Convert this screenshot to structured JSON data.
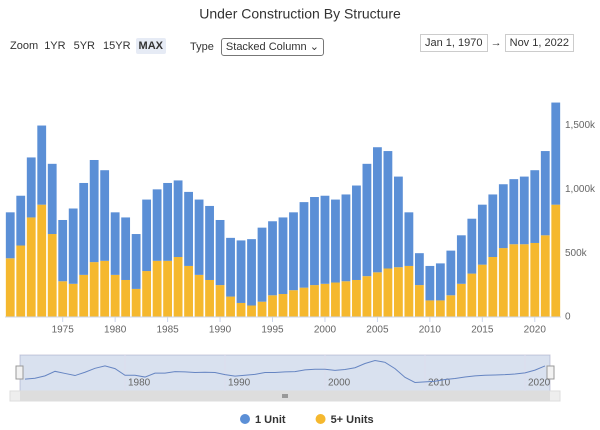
{
  "controls": {
    "zoom_label": "Zoom",
    "zoom_buttons": [
      "1YR",
      "5YR",
      "15YR",
      "MAX"
    ],
    "selected_zoom": 3,
    "type_label": "Type",
    "type_select": "Stacked Column",
    "date_from": "Jan 1, 1970",
    "date_arrow": "→",
    "date_to": "Nov 1, 2022"
  },
  "chart_data": {
    "type": "stacked_column",
    "title": "Under Construction By Structure",
    "x": [
      1970,
      1971,
      1972,
      1973,
      1974,
      1975,
      1976,
      1977,
      1978,
      1979,
      1980,
      1981,
      1982,
      1983,
      1984,
      1985,
      1986,
      1987,
      1988,
      1989,
      1990,
      1991,
      1992,
      1993,
      1994,
      1995,
      1996,
      1997,
      1998,
      1999,
      2000,
      2001,
      2002,
      2003,
      2004,
      2005,
      2006,
      2007,
      2008,
      2009,
      2010,
      2011,
      2012,
      2013,
      2014,
      2015,
      2016,
      2017,
      2018,
      2019,
      2020,
      2021,
      2022
    ],
    "series": [
      {
        "name": "1 Unit",
        "color": "#5b8fd6",
        "values": [
          360000,
          390000,
          470000,
          620000,
          550000,
          480000,
          590000,
          720000,
          800000,
          710000,
          490000,
          490000,
          430000,
          560000,
          560000,
          610000,
          600000,
          580000,
          590000,
          580000,
          510000,
          460000,
          490000,
          520000,
          580000,
          580000,
          600000,
          610000,
          670000,
          690000,
          690000,
          650000,
          680000,
          740000,
          880000,
          980000,
          920000,
          710000,
          420000,
          250000,
          270000,
          290000,
          350000,
          380000,
          430000,
          470000,
          490000,
          500000,
          510000,
          530000,
          570000,
          660000,
          800000
        ]
      },
      {
        "name": "5+ Units",
        "color": "#f5b82e",
        "values": [
          460000,
          560000,
          780000,
          880000,
          650000,
          280000,
          260000,
          330000,
          430000,
          440000,
          330000,
          290000,
          220000,
          360000,
          440000,
          440000,
          470000,
          400000,
          330000,
          290000,
          250000,
          160000,
          110000,
          90000,
          120000,
          170000,
          180000,
          210000,
          230000,
          250000,
          260000,
          270000,
          280000,
          290000,
          320000,
          350000,
          380000,
          390000,
          400000,
          250000,
          130000,
          130000,
          170000,
          260000,
          340000,
          410000,
          470000,
          540000,
          570000,
          570000,
          580000,
          640000,
          880000
        ]
      }
    ],
    "xlim": [
      1969.5,
      2022.5
    ],
    "xticks": [
      1975,
      1980,
      1985,
      1990,
      1995,
      2000,
      2005,
      2010,
      2015,
      2020
    ],
    "ylim": [
      0,
      1700000
    ],
    "yticks": [
      0,
      {
        "value": 500000,
        "label": "500k"
      },
      {
        "value": 1000000,
        "label": "1,000k"
      },
      {
        "value": 1500000,
        "label": "1,500k"
      }
    ],
    "grid": false,
    "legend": "bottom",
    "navigator": {
      "xticks": [
        1980,
        1990,
        2000,
        2010,
        2020
      ]
    }
  }
}
